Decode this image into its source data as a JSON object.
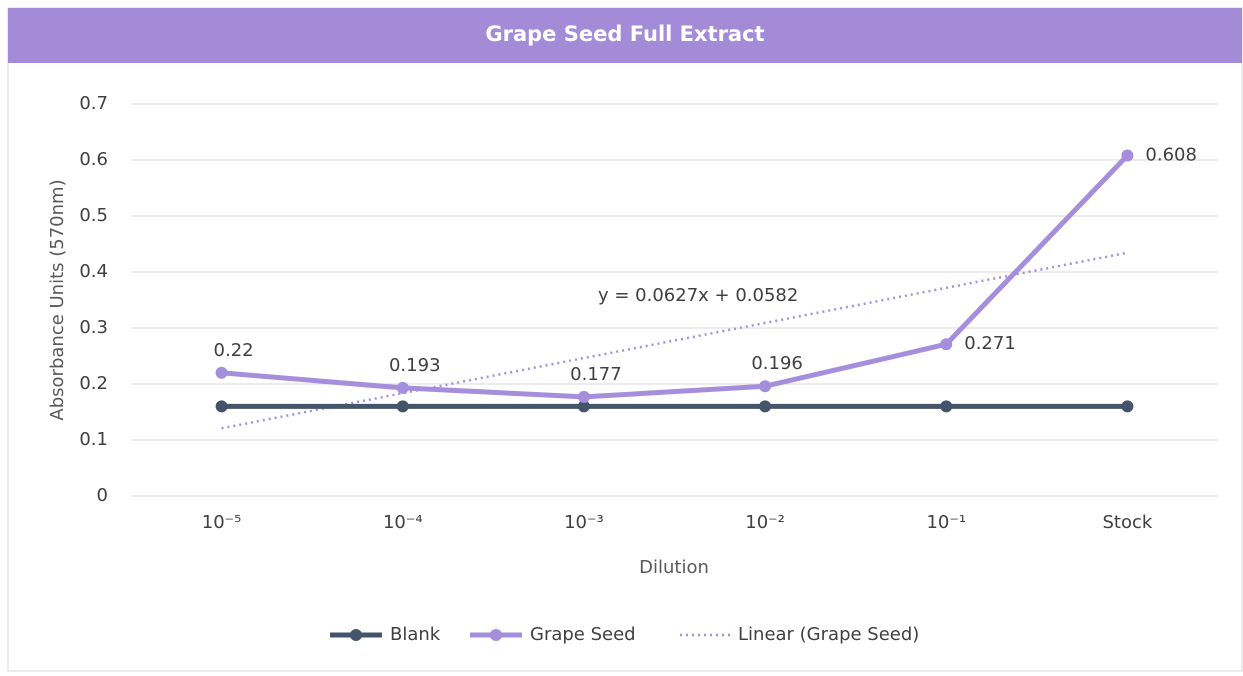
{
  "chart_data": {
    "type": "line",
    "title": "Grape Seed Full Extract",
    "x_label": "Dilution",
    "y_label": "Absorbance Units (570nm)",
    "categories": [
      "10⁻⁵",
      "10⁻⁴",
      "10⁻³",
      "10⁻²",
      "10⁻¹",
      "Stock"
    ],
    "series": [
      {
        "name": "Blank",
        "color": "#44546a",
        "values": [
          0.16,
          0.16,
          0.16,
          0.16,
          0.16,
          0.16
        ]
      },
      {
        "name": "Grape Seed",
        "color": "#a58fdc",
        "values": [
          0.22,
          0.193,
          0.177,
          0.196,
          0.271,
          0.608
        ],
        "data_labels": true
      }
    ],
    "trendline": {
      "name": "Linear (Grape Seed)",
      "color": "#a58fdc",
      "slope": 0.0627,
      "intercept": 0.0582,
      "label": "y = 0.0627x + 0.0582"
    },
    "ylim": [
      0,
      0.7
    ],
    "yticks": [
      0,
      0.1,
      0.2,
      0.3,
      0.4,
      0.5,
      0.6,
      0.7
    ],
    "grid": true,
    "legend": "bottom"
  }
}
